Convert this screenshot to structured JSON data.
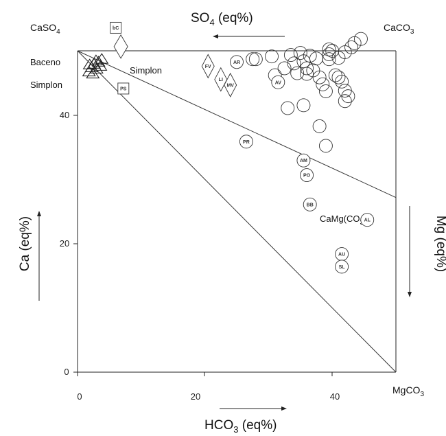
{
  "chart_data": {
    "type": "scatter",
    "x_axis": {
      "label_main": "HCO",
      "label_sub": "3",
      "label_tail": " (eq%)",
      "range": [
        0,
        50
      ],
      "ticks": [
        "0",
        "20",
        "40"
      ]
    },
    "y_axis": {
      "label": "Ca (eq%)",
      "range": [
        0,
        46
      ],
      "ticks": [
        "0",
        "20",
        "40"
      ]
    },
    "top_axis_label": {
      "main": "SO",
      "sub": "4",
      "tail": " (eq%)"
    },
    "right_axis_label": "Mg (eq%)",
    "corners": {
      "top_left": {
        "main": "CaSO",
        "sub": "4"
      },
      "top_right": {
        "main": "CaCO",
        "sub": "3"
      },
      "bottom_right": {
        "main": "MgCO",
        "sub": "3"
      }
    },
    "text_labels": {
      "baceno": "Baceno",
      "simplon_left": "Simplon",
      "simplon_diamond": "Simplon",
      "camgco3": {
        "main": "CaMg(CO",
        "sub": "3",
        "tail": ")",
        "tail_sub": "2"
      }
    },
    "lines": [
      {
        "x1": 0,
        "y1": 46,
        "x2": 50,
        "y2": 25
      },
      {
        "x1": 0,
        "y1": 46,
        "x2": 50,
        "y2": 0
      }
    ],
    "labeled_circles": [
      {
        "code": "AR",
        "x": 25,
        "y": 44.4
      },
      {
        "code": "AV",
        "x": 31.5,
        "y": 41.5
      },
      {
        "code": "PR",
        "x": 26.5,
        "y": 33
      },
      {
        "code": "AM",
        "x": 35.5,
        "y": 30.3
      },
      {
        "code": "PO",
        "x": 36,
        "y": 28.2
      },
      {
        "code": "BB",
        "x": 36.5,
        "y": 24
      },
      {
        "code": "AL",
        "x": 45.5,
        "y": 21.8
      },
      {
        "code": "AU",
        "x": 41.5,
        "y": 16.9
      },
      {
        "code": "SL",
        "x": 41.5,
        "y": 15.1
      }
    ],
    "circles": [
      {
        "x": 27.5,
        "y": 44.8
      },
      {
        "x": 28,
        "y": 44.8
      },
      {
        "x": 30.5,
        "y": 45.2
      },
      {
        "x": 31,
        "y": 42.5
      },
      {
        "x": 32.5,
        "y": 43.5
      },
      {
        "x": 33.5,
        "y": 45.4
      },
      {
        "x": 34,
        "y": 44.2
      },
      {
        "x": 34.5,
        "y": 42.8
      },
      {
        "x": 35,
        "y": 45.7
      },
      {
        "x": 35.5,
        "y": 44.5
      },
      {
        "x": 36,
        "y": 43.5
      },
      {
        "x": 36,
        "y": 42.7
      },
      {
        "x": 36.5,
        "y": 45.3
      },
      {
        "x": 37,
        "y": 43.2
      },
      {
        "x": 37.5,
        "y": 44.9
      },
      {
        "x": 38,
        "y": 42.2
      },
      {
        "x": 38.5,
        "y": 41.2
      },
      {
        "x": 39,
        "y": 40.2
      },
      {
        "x": 39.5,
        "y": 46.2
      },
      {
        "x": 39.5,
        "y": 45.5
      },
      {
        "x": 39.5,
        "y": 44.8
      },
      {
        "x": 40,
        "y": 46
      },
      {
        "x": 40.5,
        "y": 42.5
      },
      {
        "x": 41,
        "y": 45
      },
      {
        "x": 41,
        "y": 42.2
      },
      {
        "x": 41.5,
        "y": 41.6
      },
      {
        "x": 42,
        "y": 45.8
      },
      {
        "x": 42,
        "y": 40.3
      },
      {
        "x": 42,
        "y": 38.8
      },
      {
        "x": 42.5,
        "y": 39.5
      },
      {
        "x": 43,
        "y": 46.5
      },
      {
        "x": 43.5,
        "y": 47.1
      },
      {
        "x": 44.5,
        "y": 47.7
      },
      {
        "x": 33,
        "y": 37.8
      },
      {
        "x": 35.5,
        "y": 38.2
      },
      {
        "x": 38,
        "y": 35.2
      },
      {
        "x": 39,
        "y": 32.4
      }
    ],
    "labeled_diamonds": [
      {
        "code": "FV",
        "x": 20.5,
        "y": 43.8
      },
      {
        "code": "LI",
        "x": 22.5,
        "y": 41.9
      },
      {
        "code": "MV",
        "x": 24,
        "y": 41.1
      }
    ],
    "diamond_simplon": {
      "x": 6.8,
      "y": 46.6
    },
    "labeled_squares": [
      {
        "code": "bC",
        "x": 6,
        "y": 49.3
      },
      {
        "code": "PS",
        "x": 7.2,
        "y": 40.6
      }
    ],
    "triangles": [
      {
        "x": 1.8,
        "y": 43
      },
      {
        "x": 2.2,
        "y": 43.6
      },
      {
        "x": 2.6,
        "y": 44.1
      },
      {
        "x": 3,
        "y": 43.4
      },
      {
        "x": 3.3,
        "y": 44.4
      },
      {
        "x": 3.6,
        "y": 43.8
      },
      {
        "x": 2.4,
        "y": 42.7
      },
      {
        "x": 1.9,
        "y": 44
      },
      {
        "x": 3.8,
        "y": 44.8
      },
      {
        "x": 2.9,
        "y": 44.6
      }
    ]
  }
}
